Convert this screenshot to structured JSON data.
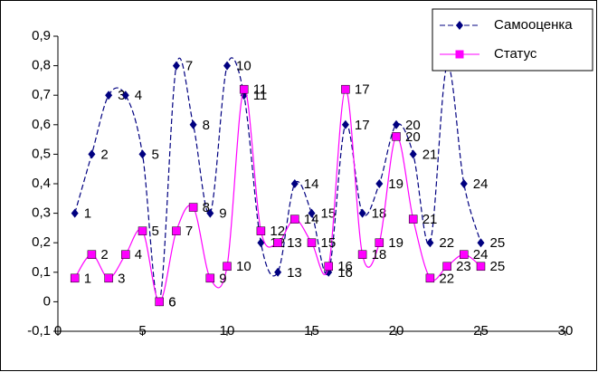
{
  "chart_data": {
    "type": "line",
    "smooth": true,
    "x": [
      1,
      2,
      3,
      4,
      5,
      6,
      7,
      8,
      9,
      10,
      11,
      12,
      13,
      14,
      15,
      16,
      17,
      18,
      19,
      20,
      21,
      22,
      23,
      24,
      25
    ],
    "series": [
      {
        "name": "Самооценка",
        "color": "#000080",
        "dash": true,
        "marker": "diamond",
        "values": [
          0.3,
          0.5,
          0.7,
          0.7,
          0.5,
          0,
          0.8,
          0.6,
          0.3,
          0.8,
          0.7,
          0.2,
          0.1,
          0.4,
          0.3,
          0.1,
          0.6,
          0.3,
          0.4,
          0.6,
          0.5,
          0.2,
          0.8,
          0.4,
          0.2
        ]
      },
      {
        "name": "Статус",
        "color": "#ff00ff",
        "dash": false,
        "marker": "square",
        "values": [
          0.08,
          0.16,
          0.08,
          0.16,
          0.24,
          0,
          0.24,
          0.32,
          0.08,
          0.12,
          0.72,
          0.24,
          0.2,
          0.28,
          0.2,
          0.12,
          0.72,
          0.16,
          0.2,
          0.56,
          0.28,
          0.08,
          0.12,
          0.16,
          0.12
        ]
      }
    ],
    "xlim": [
      0,
      30
    ],
    "xticks": [
      0,
      5,
      10,
      15,
      20,
      25,
      30
    ],
    "ylim": [
      -0.1,
      0.9
    ],
    "yticks": [
      {
        "value": -0.1,
        "label": "-0,1"
      },
      0,
      {
        "value": 0.1,
        "label": "0,1"
      },
      {
        "value": 0.2,
        "label": "0,2"
      },
      {
        "value": 0.3,
        "label": "0,3"
      },
      {
        "value": 0.4,
        "label": "0,4"
      },
      {
        "value": 0.5,
        "label": "0,5"
      },
      {
        "value": 0.6,
        "label": "0,6"
      },
      {
        "value": 0.7,
        "label": "0,7"
      },
      {
        "value": 0.8,
        "label": "0,8"
      },
      {
        "value": 0.9,
        "label": "0,9"
      }
    ],
    "legend": "top-right"
  }
}
